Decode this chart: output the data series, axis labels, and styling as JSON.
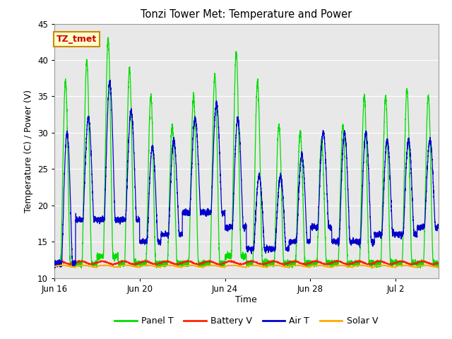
{
  "title": "Tonzi Tower Met: Temperature and Power",
  "xlabel": "Time",
  "ylabel": "Temperature (C) / Power (V)",
  "ylim": [
    10,
    45
  ],
  "yticks": [
    10,
    15,
    20,
    25,
    30,
    35,
    40,
    45
  ],
  "xtick_labels": [
    "Jun 16",
    "Jun 20",
    "Jun 24",
    "Jun 28",
    "Jul 2"
  ],
  "xtick_positions": [
    0,
    4,
    8,
    12,
    16
  ],
  "annotation_text": "TZ_tmet",
  "annotation_color": "#cc0000",
  "annotation_bg": "#ffffcc",
  "annotation_border": "#cc8800",
  "legend_entries": [
    "Panel T",
    "Battery V",
    "Air T",
    "Solar V"
  ],
  "panel_t_color": "#00dd00",
  "battery_v_color": "#ff2200",
  "air_t_color": "#0000cc",
  "solar_v_color": "#ffaa00",
  "bg_inner_color": "#e8e8e8",
  "bg_outer_color": "#ffffff",
  "grid_color": "#ffffff",
  "num_days": 18,
  "samples_per_day": 288,
  "panel_peaks": [
    37,
    40,
    43,
    39,
    35,
    31,
    35,
    38,
    41,
    37,
    31,
    30,
    29,
    31,
    35,
    35,
    36,
    35
  ],
  "panel_troughs": [
    12,
    12,
    13,
    12,
    12,
    12,
    12,
    12,
    13,
    12,
    12,
    12,
    12,
    12,
    12,
    12,
    12,
    12
  ],
  "air_peaks": [
    30,
    32,
    37,
    33,
    28,
    29,
    32,
    34,
    32,
    24,
    24,
    27,
    30,
    30,
    30,
    29,
    29,
    29
  ],
  "air_troughs": [
    12,
    18,
    18,
    18,
    15,
    16,
    19,
    19,
    17,
    14,
    14,
    15,
    17,
    15,
    15,
    16,
    16,
    17
  ],
  "battery_base": 12.1,
  "solar_base": 11.6,
  "figwidth": 6.4,
  "figheight": 4.8,
  "dpi": 100
}
